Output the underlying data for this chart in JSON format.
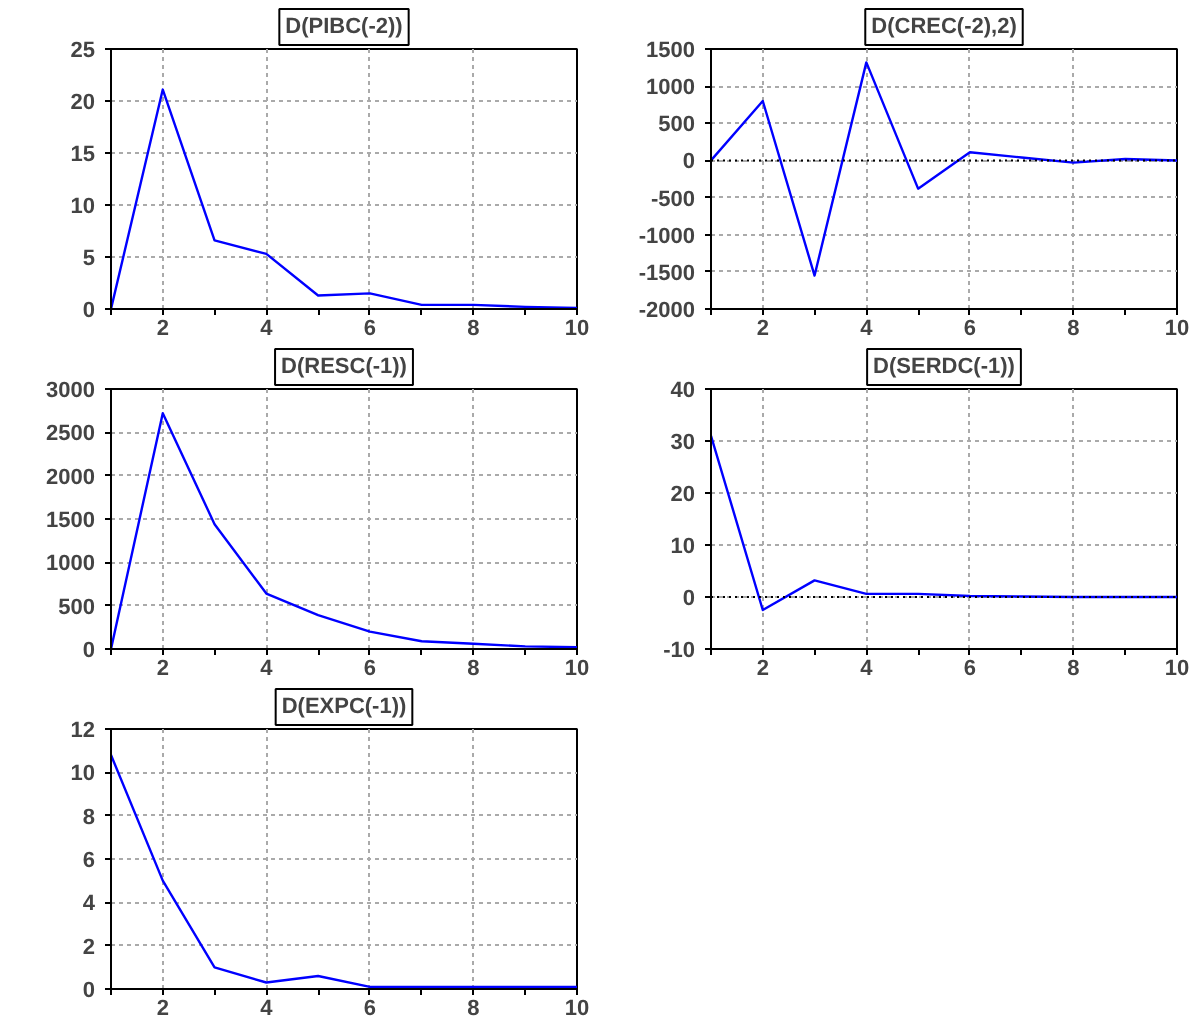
{
  "chart_data": [
    {
      "type": "line",
      "title": "D(PIBC(-2))",
      "x": [
        1,
        2,
        3,
        4,
        5,
        6,
        7,
        8,
        9,
        10
      ],
      "series": [
        {
          "color": "#0000ff",
          "values": [
            0,
            21.1,
            6.6,
            5.3,
            1.3,
            1.5,
            0.4,
            0.4,
            0.2,
            0.1
          ]
        }
      ],
      "xlim": [
        1,
        10
      ],
      "ylim": [
        0,
        25
      ],
      "xticks": [
        {
          "value": 1,
          "label": null
        },
        2,
        {
          "value": 3,
          "label": null
        },
        4,
        {
          "value": 5,
          "label": null
        },
        6,
        {
          "value": 7,
          "label": null
        },
        8,
        {
          "value": 9,
          "label": null
        },
        10
      ],
      "yticks": [
        0,
        5,
        10,
        15,
        20,
        25
      ],
      "grid": true
    },
    {
      "type": "line",
      "title": "D(CREC(-2),2)",
      "x": [
        1,
        2,
        3,
        4,
        5,
        6,
        7,
        8,
        9,
        10
      ],
      "series": [
        {
          "color": "#0000ff",
          "values": [
            0,
            800,
            -1550,
            1320,
            -380,
            110,
            40,
            -30,
            20,
            0
          ]
        }
      ],
      "xlim": [
        1,
        10
      ],
      "ylim": [
        -2000,
        1500
      ],
      "xticks": [
        {
          "value": 1,
          "label": null
        },
        2,
        {
          "value": 3,
          "label": null
        },
        4,
        {
          "value": 5,
          "label": null
        },
        6,
        {
          "value": 7,
          "label": null
        },
        8,
        {
          "value": 9,
          "label": null
        },
        10
      ],
      "yticks": [
        -2000,
        -1500,
        -1000,
        -500,
        0,
        500,
        1000,
        1500
      ],
      "grid": true,
      "ref_lines": [
        {
          "axis": "y",
          "value": 0,
          "label": null,
          "color": "#000000",
          "line_style": "dotted"
        }
      ]
    },
    {
      "type": "line",
      "title": "D(RESC(-1))",
      "x": [
        1,
        2,
        3,
        4,
        5,
        6,
        7,
        8,
        9,
        10
      ],
      "series": [
        {
          "color": "#0000ff",
          "values": [
            0,
            2720,
            1440,
            640,
            390,
            200,
            90,
            60,
            30,
            20
          ]
        }
      ],
      "xlim": [
        1,
        10
      ],
      "ylim": [
        0,
        3000
      ],
      "xticks": [
        {
          "value": 1,
          "label": null
        },
        2,
        {
          "value": 3,
          "label": null
        },
        4,
        {
          "value": 5,
          "label": null
        },
        6,
        {
          "value": 7,
          "label": null
        },
        8,
        {
          "value": 9,
          "label": null
        },
        10
      ],
      "yticks": [
        0,
        500,
        1000,
        1500,
        2000,
        2500,
        3000
      ],
      "grid": true
    },
    {
      "type": "line",
      "title": "D(SERDC(-1))",
      "x": [
        1,
        2,
        3,
        4,
        5,
        6,
        7,
        8,
        9,
        10
      ],
      "series": [
        {
          "color": "#0000ff",
          "values": [
            31,
            -2.5,
            3.2,
            0.6,
            0.6,
            0.2,
            0.1,
            0,
            0,
            0
          ]
        }
      ],
      "xlim": [
        1,
        10
      ],
      "ylim": [
        -10,
        40
      ],
      "xticks": [
        {
          "value": 1,
          "label": null
        },
        2,
        {
          "value": 3,
          "label": null
        },
        4,
        {
          "value": 5,
          "label": null
        },
        6,
        {
          "value": 7,
          "label": null
        },
        8,
        {
          "value": 9,
          "label": null
        },
        10
      ],
      "yticks": [
        -10,
        0,
        10,
        20,
        30,
        40
      ],
      "grid": true,
      "ref_lines": [
        {
          "axis": "y",
          "value": 0,
          "label": null,
          "color": "#000000",
          "line_style": "dotted"
        }
      ]
    },
    {
      "type": "line",
      "title": "D(EXPC(-1))",
      "x": [
        1,
        2,
        3,
        4,
        5,
        6,
        7,
        8,
        9,
        10
      ],
      "series": [
        {
          "color": "#0000ff",
          "values": [
            10.8,
            5.0,
            1.0,
            0.3,
            0.6,
            0.1,
            0.1,
            0.1,
            0.1,
            0.1
          ]
        }
      ],
      "xlim": [
        1,
        10
      ],
      "ylim": [
        0,
        12
      ],
      "xticks": [
        {
          "value": 1,
          "label": null
        },
        2,
        {
          "value": 3,
          "label": null
        },
        4,
        {
          "value": 5,
          "label": null
        },
        6,
        {
          "value": 7,
          "label": null
        },
        8,
        {
          "value": 9,
          "label": null
        },
        10
      ],
      "yticks": [
        0,
        2,
        4,
        6,
        8,
        10,
        12
      ],
      "grid": true
    }
  ]
}
